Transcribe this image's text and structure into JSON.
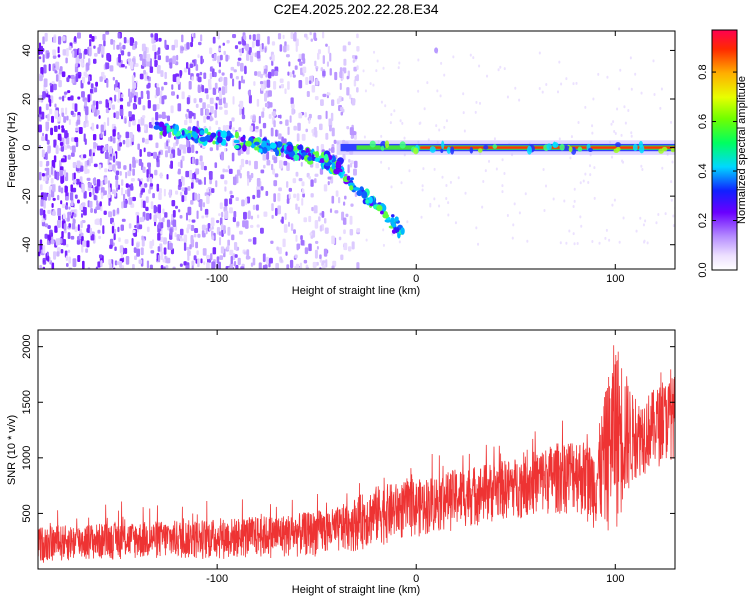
{
  "title": "C2E4.2025.202.22.28.E34",
  "chart_data": [
    {
      "type": "heatmap",
      "xlabel": "Height of straight line (km)",
      "ylabel": "Frequency (Hz)",
      "xlim": [
        -190,
        130
      ],
      "ylim": [
        -50,
        48
      ],
      "xticks": [
        -100,
        0,
        100
      ],
      "yticks": [
        -40,
        -20,
        0,
        20,
        40
      ],
      "colorbar": {
        "label": "Normalized spectral amplitude",
        "range": [
          0.0,
          0.97
        ],
        "ticks": [
          0.0,
          0.2,
          0.4,
          0.6,
          0.8
        ]
      },
      "features": {
        "line_at_frequency": 0,
        "line_from_x": -30,
        "branch_main": [
          [
            -130,
            8
          ],
          [
            -100,
            4
          ],
          [
            -70,
            0
          ],
          [
            -50,
            -4
          ],
          [
            -38,
            -8
          ]
        ],
        "branch_lower": [
          [
            -40,
            -10
          ],
          [
            -25,
            -20
          ],
          [
            -12,
            -30
          ],
          [
            -8,
            -35
          ]
        ],
        "isolated_peak": [
          10,
          40
        ]
      }
    },
    {
      "type": "line",
      "xlabel": "Height of straight line (km)",
      "ylabel": "SNR (10 * v/v)",
      "xlim": [
        -190,
        130
      ],
      "ylim": [
        0,
        2150
      ],
      "xticks": [
        -100,
        0,
        100
      ],
      "yticks": [
        500,
        1000,
        1500,
        2000
      ],
      "color": "#ee3333",
      "envelope": {
        "x": [
          -190,
          -150,
          -100,
          -60,
          -40,
          -20,
          0,
          20,
          50,
          80,
          90,
          100,
          110,
          130
        ],
        "lower": [
          50,
          80,
          80,
          100,
          120,
          200,
          280,
          350,
          450,
          500,
          350,
          300,
          800,
          1000
        ],
        "upper": [
          380,
          420,
          450,
          500,
          550,
          750,
          800,
          900,
          1000,
          1200,
          1100,
          2100,
          1500,
          1750
        ]
      }
    }
  ]
}
